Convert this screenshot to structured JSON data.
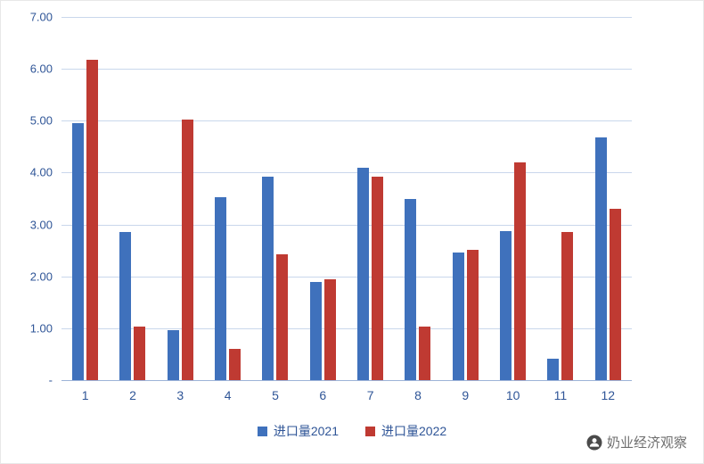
{
  "watermark": {
    "text": "奶业经济观察"
  },
  "colors": {
    "axis_label": "#2F5597",
    "gridline": "#C9D7EC",
    "baseline": "#9DB3D8",
    "series_2021": "#3F71BC",
    "series_2022": "#BF3A32",
    "watermark_text": "#6F6F6F"
  },
  "chart_data": {
    "type": "bar",
    "title": "",
    "xlabel": "",
    "ylabel": "",
    "categories": [
      "1",
      "2",
      "3",
      "4",
      "5",
      "6",
      "7",
      "8",
      "9",
      "10",
      "11",
      "12"
    ],
    "series": [
      {
        "key": "imports-2021",
        "name": "进口量2021",
        "color": "#3F71BC",
        "values": [
          4.95,
          2.85,
          0.97,
          3.53,
          3.92,
          1.9,
          4.1,
          3.5,
          2.46,
          2.88,
          0.42,
          4.68
        ]
      },
      {
        "key": "imports-2022",
        "name": "进口量2022",
        "color": "#BF3A32",
        "values": [
          6.17,
          1.03,
          5.02,
          0.6,
          2.43,
          1.95,
          3.93,
          1.03,
          2.51,
          4.2,
          2.85,
          3.3
        ]
      }
    ],
    "ylim": [
      0,
      7
    ],
    "y_ticks": [
      {
        "value": 7,
        "label": "7.00"
      },
      {
        "value": 6,
        "label": "6.00"
      },
      {
        "value": 5,
        "label": "5.00"
      },
      {
        "value": 4,
        "label": "4.00"
      },
      {
        "value": 3,
        "label": "3.00"
      },
      {
        "value": 2,
        "label": "2.00"
      },
      {
        "value": 1,
        "label": "1.00"
      },
      {
        "value": 0,
        "label": "-"
      }
    ],
    "grid": true,
    "legend_position": "bottom"
  }
}
